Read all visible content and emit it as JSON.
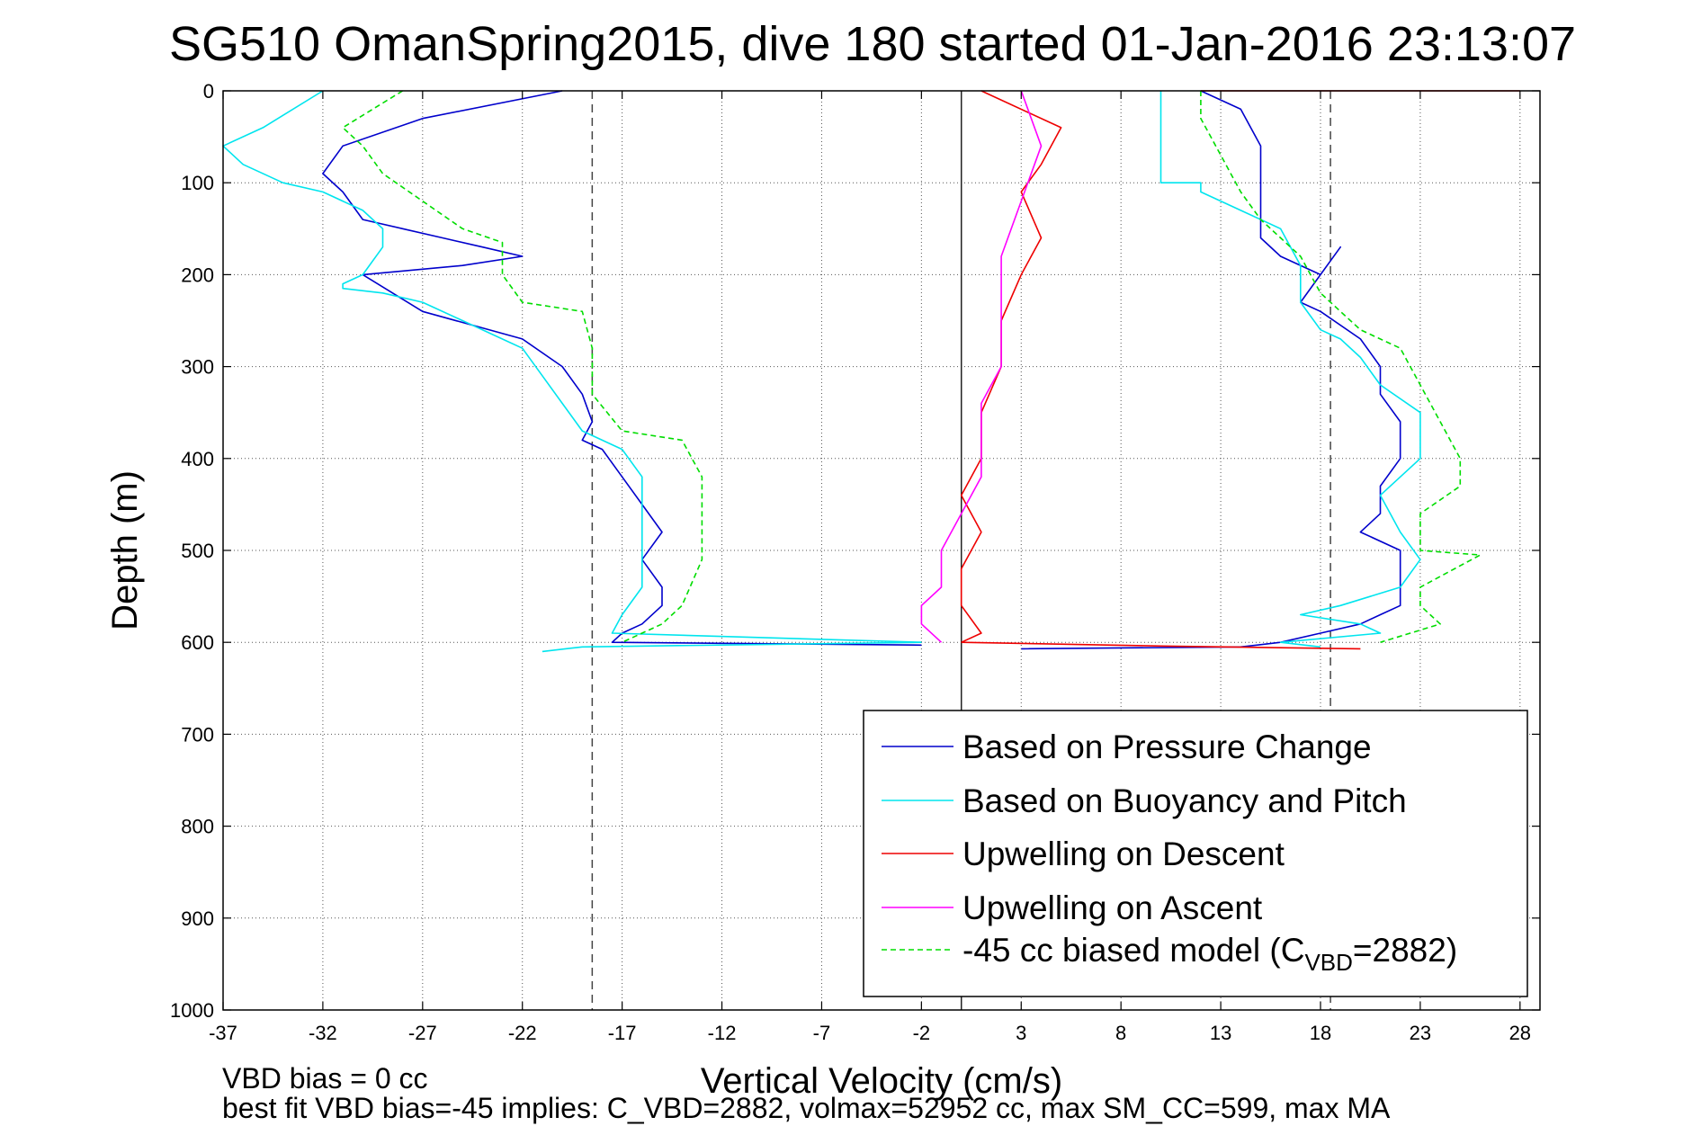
{
  "chart_data": {
    "type": "line",
    "title": "SG510 OmanSpring2015, dive 180 started 01-Jan-2016 23:13:07",
    "xlabel": "Vertical Velocity (cm/s)",
    "ylabel": "Depth (m)",
    "xlim": [
      -37,
      29
    ],
    "ylim": [
      0,
      1000
    ],
    "y_reversed": true,
    "grid": true,
    "legend_position": "bottom-right",
    "x_ticks": [
      -37,
      -32,
      -27,
      -22,
      -17,
      -12,
      -7,
      -2,
      3,
      8,
      13,
      18,
      23,
      28
    ],
    "y_ticks": [
      0,
      100,
      200,
      300,
      400,
      500,
      600,
      700,
      800,
      900,
      1000
    ],
    "reference_lines": [
      {
        "x": -18.5,
        "style": "dashed"
      },
      {
        "x": 0,
        "style": "solid"
      },
      {
        "x": 18.5,
        "style": "dashed"
      }
    ],
    "series": [
      {
        "name": "Based on Pressure Change",
        "color": "#0000cc",
        "style": "solid",
        "segments": [
          {
            "x": [
              -20,
              -27,
              -31,
              -32,
              -31,
              -30,
              -28,
              -26,
              -24,
              -22,
              -25,
              -30,
              -27,
              -22,
              -20,
              -19,
              -18.5,
              -19,
              -18,
              -17,
              -16,
              -15,
              -16,
              -15,
              -15,
              -16,
              -17,
              -17.5,
              -2
            ],
            "y": [
              0,
              30,
              60,
              90,
              110,
              140,
              150,
              160,
              170,
              180,
              190,
              200,
              240,
              270,
              300,
              330,
              360,
              380,
              390,
              420,
              450,
              480,
              510,
              540,
              560,
              580,
              590,
              600,
              603
            ]
          },
          {
            "x": [
              12,
              14,
              15,
              15,
              15,
              15,
              16,
              18,
              19,
              18,
              17,
              18,
              20,
              21,
              21,
              22,
              22,
              21,
              21,
              20,
              22,
              22,
              22,
              22,
              21,
              20,
              18,
              16,
              14,
              3
            ],
            "y": [
              0,
              20,
              60,
              100,
              130,
              160,
              180,
              200,
              170,
              200,
              230,
              240,
              270,
              300,
              330,
              360,
              400,
              430,
              460,
              480,
              500,
              530,
              550,
              560,
              570,
              580,
              590,
              600,
              605,
              607
            ]
          }
        ]
      },
      {
        "name": "Based on Buoyancy and Pitch",
        "color": "#00e5ee",
        "style": "solid",
        "segments": [
          {
            "x": [
              -32,
              -35,
              -37,
              -36,
              -34,
              -32,
              -30,
              -29,
              -29,
              -30,
              -31,
              -31,
              -29,
              -27,
              -25,
              -22,
              -21,
              -20,
              -19,
              -17,
              -16,
              -16,
              -16,
              -16,
              -17,
              -17.5,
              -2
            ],
            "y": [
              0,
              40,
              60,
              80,
              100,
              110,
              130,
              150,
              170,
              200,
              210,
              215,
              220,
              230,
              250,
              280,
              310,
              340,
              370,
              390,
              420,
              460,
              500,
              540,
              570,
              590,
              600
            ]
          },
          {
            "x": [
              -2,
              -19,
              -21
            ],
            "y": [
              600,
              605,
              610
            ]
          },
          {
            "x": [
              10,
              10,
              10,
              12,
              12,
              14,
              16,
              17,
              17,
              18,
              19,
              20,
              21,
              23,
              23,
              21,
              22,
              23,
              22,
              19,
              17,
              20,
              21,
              16,
              18
            ],
            "y": [
              0,
              40,
              100,
              100,
              110,
              130,
              150,
              190,
              230,
              260,
              270,
              290,
              320,
              350,
              400,
              440,
              480,
              510,
              540,
              560,
              570,
              580,
              590,
              600,
              605
            ]
          }
        ]
      },
      {
        "name": "Upwelling on Descent",
        "color": "#ee0000",
        "style": "solid",
        "segments": [
          {
            "x": [
              1,
              5,
              4,
              3,
              4,
              3,
              2,
              2,
              1,
              1,
              0,
              1,
              0,
              0,
              1,
              0
            ],
            "y": [
              0,
              40,
              80,
              110,
              160,
              200,
              250,
              300,
              350,
              400,
              440,
              480,
              520,
              560,
              590,
              600
            ]
          },
          {
            "x": [
              0,
              10,
              20
            ],
            "y": [
              600,
              604,
              607
            ]
          },
          {
            "x": [
              12,
              28
            ],
            "y": [
              0,
              0
            ]
          }
        ]
      },
      {
        "name": "Upwelling on Ascent",
        "color": "#ff00ff",
        "style": "solid",
        "segments": [
          {
            "x": [
              3,
              4,
              3,
              2,
              2,
              2,
              1,
              1,
              1,
              0,
              -1,
              -1,
              -2,
              -2,
              -1
            ],
            "y": [
              0,
              60,
              120,
              180,
              240,
              300,
              340,
              380,
              420,
              460,
              500,
              540,
              560,
              580,
              600
            ]
          }
        ]
      },
      {
        "name": "-45 cc biased model (C_VBD=2882)",
        "color": "#00dd00",
        "style": "dashed",
        "segments": [
          {
            "x": [
              -28,
              -31,
              -30,
              -29,
              -27,
              -25,
              -23,
              -23,
              -22,
              -19,
              -18.5,
              -18.5,
              -17,
              -14,
              -13,
              -13,
              -13,
              -14,
              -15,
              -17
            ],
            "y": [
              0,
              40,
              60,
              90,
              120,
              150,
              165,
              200,
              230,
              240,
              280,
              330,
              370,
              380,
              420,
              470,
              510,
              560,
              580,
              600
            ]
          },
          {
            "x": [
              12,
              12,
              13,
              14,
              15,
              17,
              18,
              19,
              20,
              22,
              23,
              24,
              25,
              25,
              23,
              23,
              23,
              26,
              23,
              23,
              24,
              21
            ],
            "y": [
              0,
              30,
              70,
              110,
              140,
              180,
              220,
              240,
              260,
              280,
              320,
              360,
              400,
              430,
              460,
              480,
              500,
              505,
              540,
              560,
              580,
              600
            ]
          }
        ]
      }
    ],
    "legend": [
      {
        "label": "Based on Pressure Change",
        "color": "#0000cc",
        "style": "solid"
      },
      {
        "label": "Based on Buoyancy and Pitch",
        "color": "#00e5ee",
        "style": "solid"
      },
      {
        "label": "Upwelling on Descent",
        "color": "#ee0000",
        "style": "solid"
      },
      {
        "label": "Upwelling on Ascent",
        "color": "#ff00ff",
        "style": "solid"
      },
      {
        "label_prefix": "-45 cc biased model (C",
        "label_subscript": "VBD",
        "label_suffix": "=2882)",
        "color": "#00dd00",
        "style": "dashed"
      }
    ],
    "annotations": [
      "VBD bias = 0 cc",
      "best fit VBD bias=-45 implies: C_VBD=2882, volmax=52952 cc, max SM_CC=599, max MA"
    ]
  }
}
